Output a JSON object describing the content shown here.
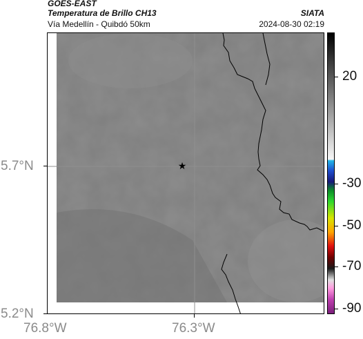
{
  "header": {
    "satellite": "GOES-EAST",
    "product": "Temperatura de Brillo CH13",
    "organization": "SIATA",
    "subtitle": "Vía Medellín - Quibdó 50km",
    "datetime": "2024-08-30 02:19"
  },
  "map": {
    "marker_icon": "star-icon",
    "x_ticks": [
      "76.8°W",
      "76.3°W"
    ],
    "y_ticks": [
      "5.7°N",
      "5.2°N"
    ],
    "background_color": "#7d7d7d",
    "coastline_color": "#000000"
  },
  "colorbar": {
    "labels": [
      "20",
      "-30",
      "-50",
      "-70",
      "-90"
    ]
  }
}
